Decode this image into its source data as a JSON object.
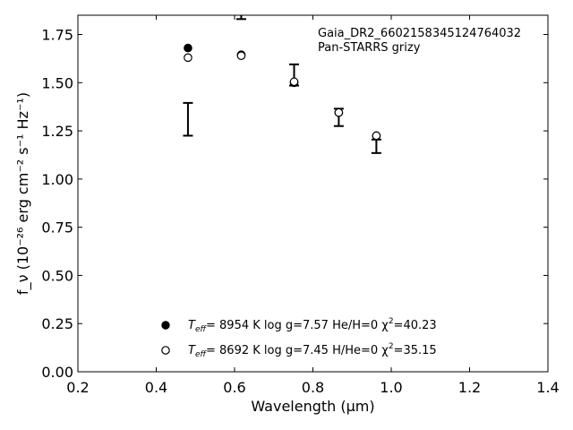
{
  "chart_data": {
    "type": "scatter",
    "xlabel": "Wavelength (μm)",
    "ylabel": "f_ν (10⁻²⁶ erg cm⁻² s⁻¹ Hz⁻¹)",
    "xlim": [
      0.2,
      1.4
    ],
    "ylim": [
      0.0,
      1.85
    ],
    "x_ticks": [
      0.2,
      0.4,
      0.6,
      0.8,
      1.0,
      1.2,
      1.4
    ],
    "y_ticks": [
      0.0,
      0.25,
      0.5,
      0.75,
      1.0,
      1.25,
      1.5,
      1.75
    ],
    "x_tick_labels": [
      "0.2",
      "0.4",
      "0.6",
      "0.8",
      "1.0",
      "1.2",
      "1.4"
    ],
    "y_tick_labels": [
      "0.00",
      "0.25",
      "0.50",
      "0.75",
      "1.00",
      "1.25",
      "1.50",
      "1.75"
    ],
    "grid": false,
    "annotation_lines": [
      "Gaia_DR2_6602158345124764032",
      "Pan-STARRS grizy"
    ],
    "observed": {
      "x": [
        0.481,
        0.617,
        0.752,
        0.866,
        0.962
      ],
      "y": [
        1.31,
        1.89,
        1.54,
        1.32,
        1.17
      ],
      "yerr": [
        0.085,
        0.06,
        0.055,
        0.045,
        0.035
      ]
    },
    "series": [
      {
        "marker": "filled",
        "x": [
          0.481,
          0.617,
          0.752,
          0.866,
          0.962
        ],
        "y": [
          1.68,
          1.645,
          1.5,
          1.345,
          1.225
        ],
        "legend": {
          "teff_label": "T",
          "teff_sub": "eff",
          "text": "=  8954 K  log g=7.57  He/H=0  χ",
          "chi_sup": "2",
          "chi_val": "=40.23"
        }
      },
      {
        "marker": "open",
        "x": [
          0.481,
          0.617,
          0.752,
          0.866,
          0.962
        ],
        "y": [
          1.63,
          1.64,
          1.505,
          1.345,
          1.225
        ],
        "legend": {
          "teff_label": "T",
          "teff_sub": "eff",
          "text": "=  8692 K  log g=7.45  H/He=0  χ",
          "chi_sup": "2",
          "chi_val": "=35.15"
        }
      }
    ]
  }
}
